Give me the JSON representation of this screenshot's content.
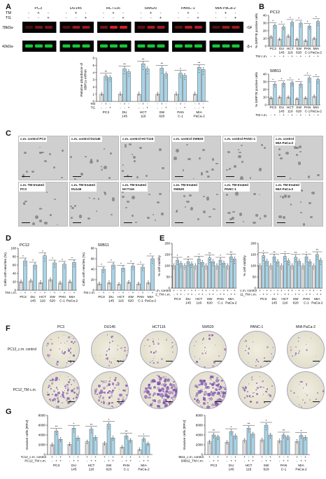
{
  "letters": {
    "a": "A",
    "b": "B",
    "c": "C",
    "d": "D",
    "e": "E",
    "f": "F",
    "g": "G"
  },
  "colors": {
    "bar": "#a9d4e7",
    "bar_light": "#dcdcdc",
    "bar_edge": "#333333",
    "blot_red": "#e2202a",
    "blot_green": "#19d13a",
    "dish": "#7b4fb0"
  },
  "lines": [
    "PC3",
    "DU145",
    "HCT116",
    "SW620",
    "PANC-1",
    "MIA PaCa-2"
  ],
  "lines_axis": [
    [
      "PC3",
      ""
    ],
    [
      "DU",
      "145"
    ],
    [
      "HCT",
      "116"
    ],
    [
      "SW",
      "620"
    ],
    [
      "PAN",
      "C-1"
    ],
    [
      "MIA",
      "PaCa-2"
    ]
  ],
  "blot": {
    "tm_row": "TM",
    "tg_row": "TG",
    "pattern_tm": [
      "-",
      "+",
      "-"
    ],
    "pattern_tg": [
      "-",
      "-",
      "+"
    ],
    "mw_top": "78kDa-",
    "mw_bottom": "42kDa-",
    "band_top": "-GRP78",
    "band_bottom": "-β-actin"
  },
  "panelA_chart": {
    "ylabel": [
      "Relative abundance of",
      "XBP1s mRNA"
    ],
    "ylim": [
      0,
      6
    ],
    "yticks": [
      "0",
      "1",
      "2",
      "3",
      "4",
      "5",
      "6"
    ],
    "row_tm": "TM",
    "row_tg": "TG",
    "sig": [
      "**",
      "**",
      "**",
      "**",
      "*",
      "**",
      "**",
      "**",
      "**",
      "**",
      "**",
      "**"
    ]
  },
  "panelB": {
    "top_title": "PC12",
    "bottom_title": "50B11",
    "ylabel": "% GRP78 positive cells",
    "ylim": [
      0,
      40
    ],
    "yticks": [
      "0",
      "10",
      "20",
      "30",
      "40"
    ],
    "row": "TM c.m.",
    "sig": "*"
  },
  "panelC": {
    "rows": [
      [
        "c.m. control PC3",
        "c.m. control DU145",
        "c.m. control HCT116",
        "c.m. control SW620",
        "c.m. control PANC-1",
        "c.m. control\nMIA PaCa-2"
      ],
      [
        "c.m. TM-treated\nPC3",
        "c.m. TM-treated\nDU145",
        "c.m. TM-treated\nHCT116",
        "c.m. TM-treated\nSW620",
        "c.m. TM-treated\nPANC-1",
        "c.m. TM-treated\nMIA PaCa-2"
      ]
    ]
  },
  "panelD": {
    "left_title": "PC12",
    "right_title": "50B11",
    "ylabel": "Cells with neurites (%)",
    "ylim": [
      0,
      100
    ],
    "yticks": [
      "0",
      "20",
      "40",
      "60",
      "80",
      "100"
    ],
    "right_ylim": [
      0,
      80
    ],
    "right_yticks": [
      "0",
      "20",
      "40",
      "60",
      "80"
    ],
    "row": "TM c.m.",
    "sig": "*"
  },
  "panelE": {
    "ylabel": "% cell viability",
    "ylim": [
      0,
      200
    ],
    "yticks": [
      "0",
      "50",
      "100",
      "150",
      "200"
    ],
    "left_rows": [
      "PC12_c.m. control",
      "PC12_TM c.m."
    ],
    "right_rows": [
      "50B11_c.m. control",
      "50B11_TM c.m."
    ],
    "sig": [
      "*",
      "**"
    ]
  },
  "panelF": {
    "rows": [
      "PC12_c.m. control",
      "PC12_TM c.m."
    ],
    "density_top": [
      0.25,
      0.2,
      0.15,
      0.15,
      0.1,
      0.05
    ],
    "density_bottom": [
      0.6,
      0.55,
      0.95,
      0.9,
      0.25,
      0.1
    ]
  },
  "panelG": {
    "ylabel": "Invasive cells (RFU)",
    "ylim": [
      0,
      8000
    ],
    "yticks": [
      "0",
      "2000",
      "4000",
      "6000",
      "8000"
    ],
    "left_rows": [
      "PC12_c.m. control",
      "PC12_TM c.m."
    ],
    "right_rows": [
      "50B11_c.m. control",
      "50B11_TM c.m."
    ],
    "sig": [
      "**",
      "*"
    ]
  },
  "chart_data": [
    {
      "type": "bar",
      "ylabel": "Relative abundance of XBP1s mRNA",
      "ylim": [
        0,
        6
      ],
      "categories": [
        "PC3",
        "DU145",
        "HCT116",
        "SW620",
        "PANC-1",
        "MIA PaCa-2"
      ],
      "series": [
        {
          "values": [
            1.0,
            1.0,
            1.0,
            1.0,
            1.0,
            1.0
          ]
        },
        {
          "values": [
            3.5,
            4.5,
            5.2,
            4.6,
            3.9,
            4.7
          ]
        },
        {
          "values": [
            3.3,
            4.1,
            4.5,
            3.8,
            3.6,
            4.4
          ]
        }
      ]
    },
    {
      "type": "bar",
      "title": "PC12",
      "ylabel": "% GRP78 positive cells",
      "ylim": [
        0,
        40
      ],
      "categories": [
        "PC3",
        "DU145",
        "HCT116",
        "SW620",
        "PANC-1",
        "MIA PaCa-2"
      ],
      "series": [
        {
          "values": [
            12,
            9,
            13,
            9,
            7,
            10
          ]
        },
        {
          "values": [
            27,
            25,
            31,
            30,
            26,
            32
          ]
        }
      ]
    },
    {
      "type": "bar",
      "title": "50B11",
      "ylabel": "% GRP78 positive cells",
      "ylim": [
        0,
        40
      ],
      "categories": [
        "PC3",
        "DU145",
        "HCT116",
        "SW620",
        "PANC-1",
        "MIA PaCa-2"
      ],
      "series": [
        {
          "values": [
            9,
            10,
            10,
            8,
            9,
            11
          ]
        },
        {
          "values": [
            27,
            28,
            29,
            27,
            35,
            33
          ]
        }
      ]
    },
    {
      "type": "bar",
      "title": "PC12",
      "ylabel": "Cells with neurites (%)",
      "ylim": [
        0,
        100
      ],
      "categories": [
        "PC3",
        "DU145",
        "HCT116",
        "SW620",
        "PANC-1",
        "MIA PaCa-2"
      ],
      "series": [
        {
          "values": [
            20,
            22,
            18,
            25,
            17,
            20
          ]
        },
        {
          "values": [
            70,
            60,
            82,
            65,
            62,
            66
          ]
        }
      ]
    },
    {
      "type": "bar",
      "title": "50B11",
      "ylabel": "Cells with neurites (%)",
      "ylim": [
        0,
        80
      ],
      "categories": [
        "PC3",
        "DU145",
        "HCT116",
        "SW620",
        "PANC-1",
        "MIA PaCa-2"
      ],
      "series": [
        {
          "values": [
            12,
            14,
            11,
            15,
            12,
            14
          ]
        },
        {
          "values": [
            40,
            48,
            42,
            46,
            44,
            60
          ]
        }
      ]
    },
    {
      "type": "bar",
      "ylabel": "% cell viability",
      "ylim": [
        0,
        200
      ],
      "categories": [
        "PC3",
        "DU145",
        "HCT116",
        "SW620",
        "PANC-1",
        "MIA PaCa-2"
      ],
      "series": [
        {
          "values": [
            100,
            100,
            100,
            100,
            100,
            100
          ]
        },
        {
          "values": [
            125,
            118,
            130,
            135,
            125,
            140
          ]
        },
        {
          "values": [
            110,
            108,
            115,
            118,
            112,
            130
          ]
        }
      ]
    },
    {
      "type": "bar",
      "ylabel": "% cell viability",
      "ylim": [
        0,
        200
      ],
      "categories": [
        "PC3",
        "DU145",
        "HCT116",
        "SW620",
        "PANC-1",
        "MIA PaCa-2"
      ],
      "series": [
        {
          "values": [
            100,
            100,
            100,
            100,
            100,
            100
          ]
        },
        {
          "values": [
            145,
            140,
            142,
            138,
            140,
            150
          ]
        },
        {
          "values": [
            120,
            118,
            122,
            120,
            118,
            125
          ]
        }
      ]
    },
    {
      "type": "bar",
      "ylabel": "Invasive cells (RFU)",
      "ylim": [
        0,
        8000
      ],
      "categories": [
        "PC3",
        "DU145",
        "HCT116",
        "SW620",
        "PANC-1",
        "MIA PaCa-2"
      ],
      "series": [
        {
          "values": [
            2000,
            2100,
            2600,
            2300,
            1500,
            1000
          ]
        },
        {
          "values": [
            4800,
            5400,
            5200,
            6200,
            3800,
            3200
          ]
        },
        {
          "values": [
            3100,
            3400,
            3500,
            3400,
            2900,
            2200
          ]
        }
      ]
    },
    {
      "type": "bar",
      "ylabel": "Invasive cells (RFU)",
      "ylim": [
        0,
        8000
      ],
      "categories": [
        "PC3",
        "DU145",
        "HCT116",
        "SW620",
        "PANC-1",
        "MIA PaCa-2"
      ],
      "series": [
        {
          "values": [
            2600,
            2500,
            2900,
            3000,
            2800,
            2700
          ]
        },
        {
          "values": [
            4000,
            4700,
            5400,
            6000,
            4000,
            3900
          ]
        },
        {
          "values": [
            3600,
            3800,
            4200,
            4000,
            3600,
            3500
          ]
        }
      ]
    }
  ]
}
